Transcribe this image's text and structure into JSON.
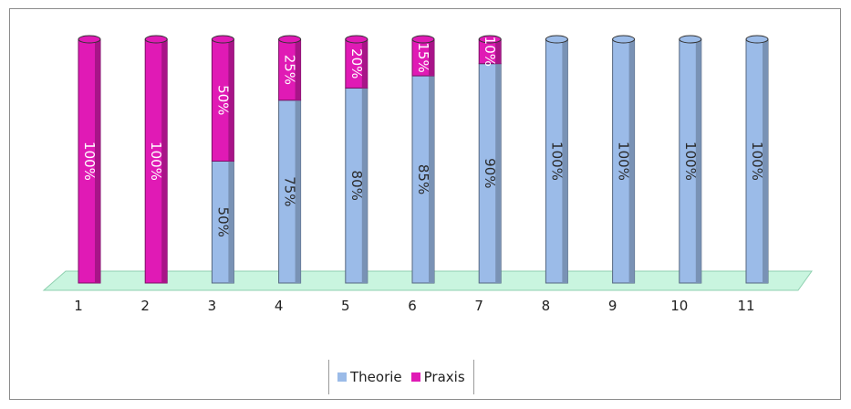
{
  "chart_data": {
    "type": "bar",
    "stacked": true,
    "percent_stacked": true,
    "three_d": true,
    "categories": [
      "1",
      "2",
      "3",
      "4",
      "5",
      "6",
      "7",
      "8",
      "9",
      "10",
      "11"
    ],
    "series": [
      {
        "name": "Theorie",
        "color": "#9bbbe8",
        "values": [
          0,
          0,
          50,
          75,
          80,
          85,
          90,
          100,
          100,
          100,
          100
        ],
        "labels": [
          "",
          "",
          "50%",
          "75%",
          "80%",
          "85%",
          "90%",
          "100%",
          "100%",
          "100%",
          "100%"
        ]
      },
      {
        "name": "Praxis",
        "color": "#e01ab5",
        "values": [
          100,
          100,
          50,
          25,
          20,
          15,
          10,
          0,
          0,
          0,
          0
        ],
        "labels": [
          "100%",
          "100%",
          "50%",
          "25%",
          "20%",
          "15%",
          "10%",
          "",
          "",
          "",
          ""
        ]
      }
    ],
    "ylim": [
      0,
      100
    ],
    "floor_color": "#c9f5df",
    "legend_position": "bottom"
  }
}
